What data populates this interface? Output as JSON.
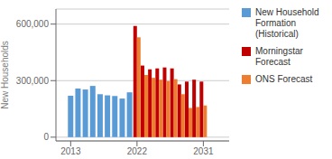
{
  "chart_data": {
    "type": "bar",
    "x": [
      2013,
      2014,
      2015,
      2016,
      2017,
      2018,
      2019,
      2020,
      2021,
      2022,
      2023,
      2024,
      2025,
      2026,
      2027,
      2028,
      2029,
      2030,
      2031
    ],
    "series": [
      {
        "name": "New Household\nFormation\n(Historical)",
        "color": "#5b9bd5",
        "values": [
          220000,
          258000,
          253000,
          272000,
          228000,
          222000,
          218000,
          205000,
          238000,
          null,
          null,
          null,
          null,
          null,
          null,
          null,
          null,
          null,
          null
        ]
      },
      {
        "name": "Morningstar\nForecast",
        "color": "#c00000",
        "values": [
          null,
          null,
          null,
          null,
          null,
          null,
          null,
          null,
          null,
          590000,
          380000,
          360000,
          365000,
          370000,
          365000,
          280000,
          295000,
          305000,
          295000
        ]
      },
      {
        "name": "ONS Forecast",
        "color": "#ed7d31",
        "values": [
          null,
          null,
          null,
          null,
          null,
          null,
          null,
          null,
          null,
          530000,
          330000,
          315000,
          305000,
          298000,
          308000,
          228000,
          155000,
          160000,
          168000
        ]
      }
    ],
    "ylabel": "New Households",
    "ylim": [
      -20000,
      680000
    ],
    "yticks": [
      0,
      {
        "value": 300000,
        "label": "300,000"
      },
      {
        "value": 600000,
        "label": "600,000"
      }
    ],
    "xlim": [
      2011.0,
      2034.5
    ],
    "xticks": [
      2013,
      2022,
      2031
    ],
    "grid": true,
    "legend": "right"
  }
}
